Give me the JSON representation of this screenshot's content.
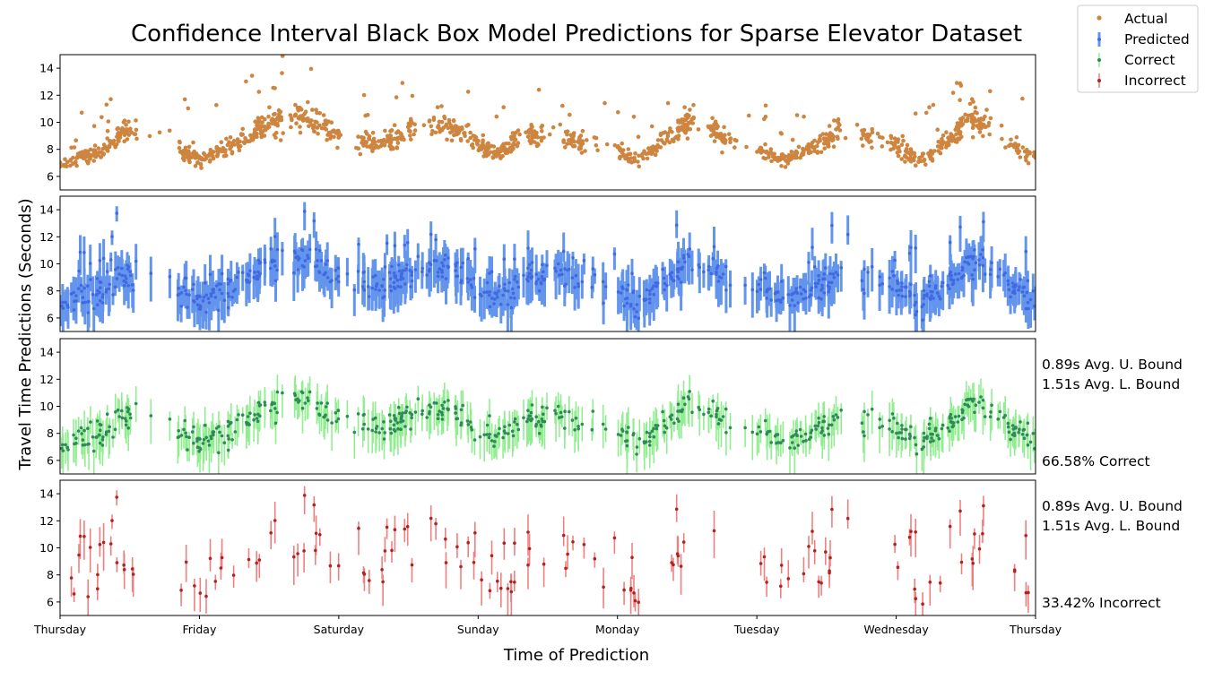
{
  "chart_data": {
    "type": "scatter",
    "title": "Confidence Interval Black Box Model Predictions for Sparse Elevator Dataset",
    "xlabel": "Time of Prediction",
    "ylabel": "Travel Time Predictions (Seconds)",
    "x_ticks": [
      "Thursday",
      "Friday",
      "Saturday",
      "Sunday",
      "Monday",
      "Tuesday",
      "Wednesday",
      "Thursday"
    ],
    "x_range_days": [
      0,
      7
    ],
    "y_ticks": [
      "6",
      "8",
      "10",
      "12",
      "14"
    ],
    "ylim": [
      5,
      15
    ],
    "legend": {
      "placement": "top-right",
      "entries": [
        "Actual",
        "Predicted",
        "Correct",
        "Incorrect"
      ]
    },
    "colors": {
      "actual": "#cd853f",
      "predicted": "#4169e1",
      "predicted_band": "#6495ed",
      "correct": "#2e8b57",
      "correct_band": "#90ee90",
      "incorrect": "#b22222",
      "incorrect_band": "#f08080"
    },
    "panels": [
      {
        "series": "Actual",
        "style": "points",
        "profile_days": [
          [
            0,
            7.0
          ],
          [
            0.3,
            7.8
          ],
          [
            0.45,
            9.5
          ],
          [
            0.65,
            9.0
          ],
          [
            0.85,
            8.0
          ],
          [
            1.0,
            7.2
          ],
          [
            1.3,
            8.5
          ],
          [
            1.5,
            10.0
          ],
          [
            1.7,
            10.5
          ],
          [
            1.85,
            9.8
          ],
          [
            2.1,
            8.5
          ],
          [
            2.4,
            8.6
          ],
          [
            2.55,
            9.8
          ],
          [
            2.8,
            9.7
          ],
          [
            3.0,
            8.5
          ],
          [
            3.15,
            7.6
          ],
          [
            3.3,
            9.0
          ],
          [
            3.55,
            9.2
          ],
          [
            3.7,
            8.6
          ],
          [
            4.0,
            8.0
          ],
          [
            4.15,
            7.2
          ],
          [
            4.35,
            8.8
          ],
          [
            4.55,
            10.2
          ],
          [
            4.75,
            9.0
          ],
          [
            5.0,
            8.0
          ],
          [
            5.2,
            7.2
          ],
          [
            5.45,
            8.5
          ],
          [
            5.6,
            9.5
          ],
          [
            5.75,
            9.0
          ],
          [
            6.0,
            8.3
          ],
          [
            6.15,
            7.2
          ],
          [
            6.4,
            8.8
          ],
          [
            6.55,
            10.5
          ],
          [
            6.7,
            9.6
          ],
          [
            6.85,
            8.2
          ],
          [
            7.0,
            7.4
          ]
        ],
        "gaps_days": [
          [
            0.55,
            0.85
          ],
          [
            1.6,
            1.68
          ],
          [
            2.0,
            2.13
          ],
          [
            2.55,
            2.65
          ],
          [
            3.3,
            3.35
          ],
          [
            3.48,
            3.6
          ],
          [
            3.78,
            4.0
          ],
          [
            4.55,
            4.65
          ],
          [
            4.78,
            5.0
          ],
          [
            5.6,
            5.75
          ],
          [
            5.83,
            5.95
          ],
          [
            6.68,
            6.8
          ]
        ]
      },
      {
        "series": "Predicted",
        "style": "point+band",
        "percent_label": ""
      },
      {
        "series": "Correct",
        "style": "point+band",
        "upper_bound_label": "0.89s Avg. U. Bound",
        "lower_bound_label": "1.51s Avg. L. Bound",
        "percent_label": "66.58% Correct"
      },
      {
        "series": "Incorrect",
        "style": "point+band",
        "upper_bound_label": "0.89s Avg. U. Bound",
        "lower_bound_label": "1.51s Avg. L. Bound",
        "percent_label": "33.42% Incorrect"
      }
    ]
  }
}
